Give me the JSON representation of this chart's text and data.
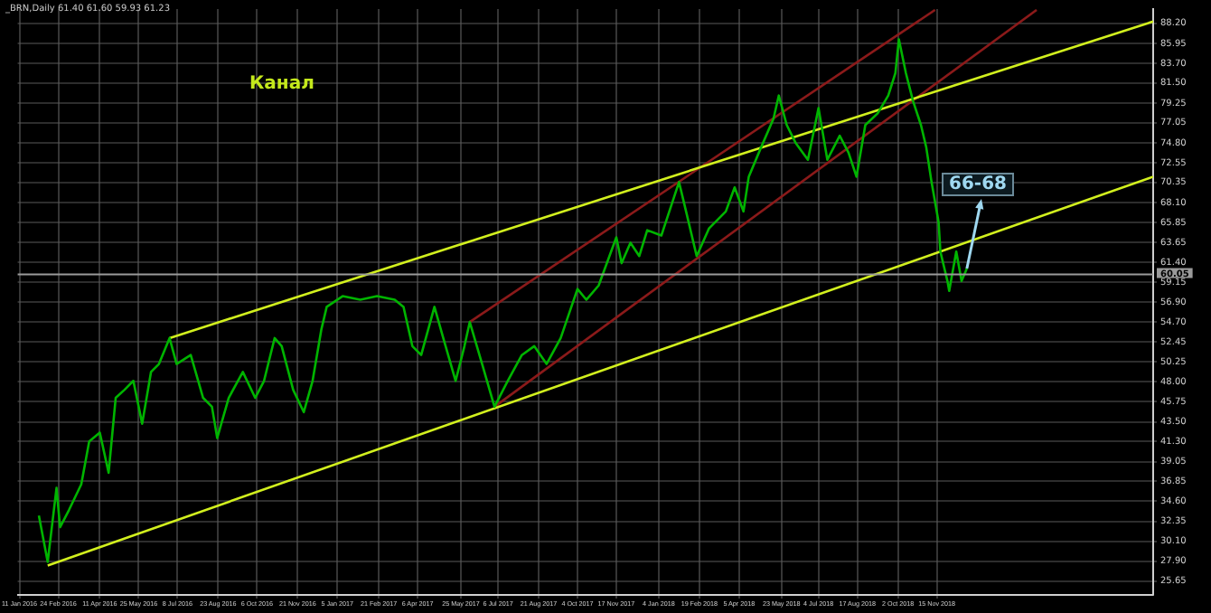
{
  "chart_data": {
    "type": "line",
    "title": "_BRN,Daily 61.40 61.60 59.93 61.23",
    "xlim": [
      "2016-01-09",
      "2019-07-18"
    ],
    "ylim": [
      24.1,
      89.8
    ],
    "xticks": [
      {
        "value": "2016-01-11",
        "label": "11 Jan 2016"
      },
      {
        "value": "2016-02-24",
        "label": "24 Feb 2016"
      },
      {
        "value": "2016-04-11",
        "label": "11 Apr 2016"
      },
      {
        "value": "2016-05-25",
        "label": "25 May 2016"
      },
      {
        "value": "2016-07-08",
        "label": "8 Jul 2016"
      },
      {
        "value": "2016-08-23",
        "label": "23 Aug 2016"
      },
      {
        "value": "2016-10-06",
        "label": "6 Oct 2016"
      },
      {
        "value": "2016-11-21",
        "label": "21 Nov 2016"
      },
      {
        "value": "2017-01-05",
        "label": "5 Jan 2017"
      },
      {
        "value": "2017-02-21",
        "label": "21 Feb 2017"
      },
      {
        "value": "2017-04-06",
        "label": "6 Apr 2017"
      },
      {
        "value": "2017-05-25",
        "label": "25 May 2017"
      },
      {
        "value": "2017-07-06",
        "label": "6 Jul 2017"
      },
      {
        "value": "2017-08-21",
        "label": "21 Aug 2017"
      },
      {
        "value": "2017-10-04",
        "label": "4 Oct 2017"
      },
      {
        "value": "2017-11-17",
        "label": "17 Nov 2017"
      },
      {
        "value": "2018-01-04",
        "label": "4 Jan 2018"
      },
      {
        "value": "2018-02-19",
        "label": "19 Feb 2018"
      },
      {
        "value": "2018-04-05",
        "label": "5 Apr 2018"
      },
      {
        "value": "2018-05-23",
        "label": "23 May 2018"
      },
      {
        "value": "2018-07-04",
        "label": "4 Jul 2018"
      },
      {
        "value": "2018-08-17",
        "label": "17 Aug 2018"
      },
      {
        "value": "2018-10-02",
        "label": "2 Oct 2018"
      },
      {
        "value": "2018-11-15",
        "label": "15 Nov 2018"
      }
    ],
    "yticks": [
      {
        "value": 25.65,
        "label": "25.65"
      },
      {
        "value": 27.9,
        "label": "27.90"
      },
      {
        "value": 30.1,
        "label": "30.10"
      },
      {
        "value": 32.35,
        "label": "32.35"
      },
      {
        "value": 34.6,
        "label": "34.60"
      },
      {
        "value": 36.85,
        "label": "36.85"
      },
      {
        "value": 39.05,
        "label": "39.05"
      },
      {
        "value": 41.3,
        "label": "41.30"
      },
      {
        "value": 43.5,
        "label": "43.50"
      },
      {
        "value": 45.75,
        "label": "45.75"
      },
      {
        "value": 48.0,
        "label": "48.00"
      },
      {
        "value": 50.25,
        "label": "50.25"
      },
      {
        "value": 52.45,
        "label": "52.45"
      },
      {
        "value": 54.7,
        "label": "54.70"
      },
      {
        "value": 56.9,
        "label": "56.90"
      },
      {
        "value": 59.15,
        "label": "59.15"
      },
      {
        "value": 61.4,
        "label": "61.40"
      },
      {
        "value": 63.65,
        "label": "63.65"
      },
      {
        "value": 65.85,
        "label": "65.85"
      },
      {
        "value": 68.1,
        "label": "68.10"
      },
      {
        "value": 70.35,
        "label": "70.35"
      },
      {
        "value": 72.55,
        "label": "72.55"
      },
      {
        "value": 74.8,
        "label": "74.80"
      },
      {
        "value": 77.05,
        "label": "77.05"
      },
      {
        "value": 79.25,
        "label": "79.25"
      },
      {
        "value": 81.5,
        "label": "81.50"
      },
      {
        "value": 83.7,
        "label": "83.70"
      },
      {
        "value": 85.95,
        "label": "85.95"
      },
      {
        "value": 88.2,
        "label": "88.20"
      }
    ],
    "grid": true,
    "legend": false,
    "marker": "none",
    "x": [
      "2016-02-02",
      "2016-02-12",
      "2016-02-22",
      "2016-02-26",
      "2016-03-07",
      "2016-03-21",
      "2016-03-30",
      "2016-04-11",
      "2016-04-21",
      "2016-04-29",
      "2016-05-09",
      "2016-05-19",
      "2016-05-29",
      "2016-06-08",
      "2016-06-17",
      "2016-06-29",
      "2016-07-07",
      "2016-07-23",
      "2016-08-06",
      "2016-08-16",
      "2016-08-22",
      "2016-09-04",
      "2016-09-20",
      "2016-10-04",
      "2016-10-14",
      "2016-10-26",
      "2016-11-03",
      "2016-11-16",
      "2016-11-28",
      "2016-12-08",
      "2016-12-18",
      "2016-12-24",
      "2017-01-11",
      "2017-01-31",
      "2017-02-19",
      "2017-03-11",
      "2017-03-21",
      "2017-03-31",
      "2017-04-10",
      "2017-04-25",
      "2017-05-05",
      "2017-05-19",
      "2017-05-29",
      "2017-06-04",
      "2017-06-18",
      "2017-07-02",
      "2017-07-17",
      "2017-08-02",
      "2017-08-16",
      "2017-08-30",
      "2017-09-15",
      "2017-10-04",
      "2017-10-14",
      "2017-10-28",
      "2017-11-17",
      "2017-11-23",
      "2017-12-03",
      "2017-12-13",
      "2017-12-22",
      "2018-01-07",
      "2018-01-27",
      "2018-02-04",
      "2018-02-16",
      "2018-03-02",
      "2018-03-21",
      "2018-03-31",
      "2018-04-10",
      "2018-04-16",
      "2018-04-30",
      "2018-05-14",
      "2018-05-20",
      "2018-05-29",
      "2018-06-08",
      "2018-06-22",
      "2018-07-04",
      "2018-07-14",
      "2018-07-28",
      "2018-08-07",
      "2018-08-16",
      "2018-08-26",
      "2018-09-09",
      "2018-09-21",
      "2018-09-29",
      "2018-10-03",
      "2018-10-11",
      "2018-10-19",
      "2018-10-28",
      "2018-11-03",
      "2018-11-09",
      "2018-11-17",
      "2018-11-19",
      "2018-11-27",
      "2018-11-29",
      "2018-12-07",
      "2018-12-13",
      "2018-12-19"
    ],
    "series": [
      {
        "color": "#00b400",
        "values": [
          33.0,
          27.8,
          36.1,
          31.7,
          33.6,
          36.5,
          41.3,
          42.3,
          37.8,
          46.2,
          47.1,
          48.1,
          43.3,
          49.1,
          50.0,
          52.9,
          50.0,
          51.0,
          46.2,
          45.2,
          41.7,
          46.2,
          49.1,
          46.2,
          48.1,
          52.9,
          52.0,
          47.1,
          44.6,
          48.1,
          53.9,
          56.4,
          57.6,
          57.2,
          57.6,
          57.2,
          56.4,
          52.0,
          51.0,
          56.4,
          52.9,
          48.1,
          52.0,
          54.7,
          50.0,
          45.2,
          48.1,
          51.0,
          52.0,
          50.0,
          52.9,
          58.4,
          57.2,
          58.8,
          64.2,
          61.3,
          63.6,
          62.1,
          65.0,
          64.4,
          70.4,
          67.1,
          62.1,
          65.2,
          67.1,
          69.8,
          67.1,
          71.0,
          74.3,
          77.5,
          80.1,
          76.8,
          74.8,
          72.9,
          78.7,
          72.9,
          75.6,
          73.7,
          71.0,
          76.8,
          78.1,
          80.1,
          82.6,
          86.4,
          82.6,
          79.5,
          76.8,
          74.3,
          70.4,
          65.9,
          62.6,
          59.3,
          58.2,
          62.6,
          59.3,
          60.7
        ]
      },
      {
        "color": "#d2f01e",
        "x": [
          "2016-02-12",
          "2019-07-18"
        ],
        "values": [
          27.4,
          71.0
        ]
      },
      {
        "color": "#d2f01e",
        "x": [
          "2016-06-29",
          "2019-07-18"
        ],
        "values": [
          52.9,
          88.4
        ]
      },
      {
        "color": "#8b1a1a",
        "x": [
          "2017-06-04",
          "2018-11-13"
        ],
        "values": [
          54.7,
          89.7
        ]
      },
      {
        "color": "#8b1a1a",
        "x": [
          "2017-07-02",
          "2019-03-08"
        ],
        "values": [
          45.2,
          89.7
        ]
      }
    ],
    "ref_lines": [
      {
        "axis": "y",
        "value": 60.05,
        "label": "60.05",
        "color": "#9a9a9a"
      }
    ],
    "annotations": [
      "Канал",
      "66-68"
    ]
  }
}
